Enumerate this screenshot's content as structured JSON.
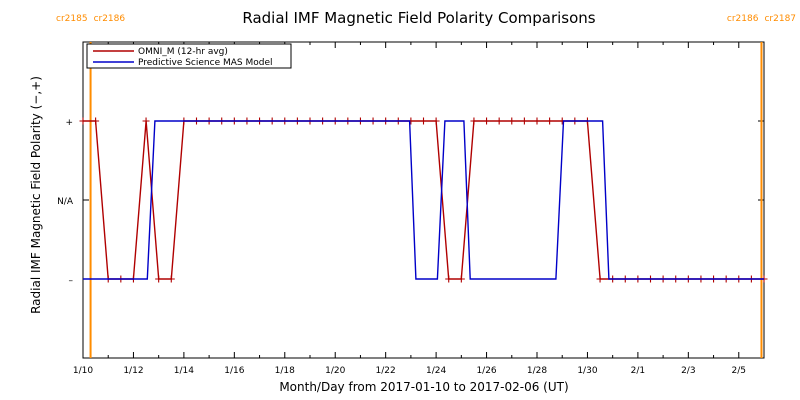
{
  "chart_data": {
    "type": "line",
    "title": "Radial IMF Magnetic Field Polarity Comparisons",
    "xlabel": "Month/Day from 2017-01-10 to 2017-02-06 (UT)",
    "ylabel": "Radial IMF Magnetic Field Polarity (−,+)",
    "xlim": [
      0,
      27
    ],
    "ylim": [
      -2,
      2
    ],
    "x_ticks": [
      {
        "value": 0,
        "label": "1/10"
      },
      {
        "value": 2,
        "label": "1/12"
      },
      {
        "value": 4,
        "label": "1/14"
      },
      {
        "value": 6,
        "label": "1/16"
      },
      {
        "value": 8,
        "label": "1/18"
      },
      {
        "value": 10,
        "label": "1/20"
      },
      {
        "value": 12,
        "label": "1/22"
      },
      {
        "value": 14,
        "label": "1/24"
      },
      {
        "value": 16,
        "label": "1/26"
      },
      {
        "value": 18,
        "label": "1/28"
      },
      {
        "value": 20,
        "label": "1/30"
      },
      {
        "value": 22,
        "label": "2/1"
      },
      {
        "value": 24,
        "label": "2/3"
      },
      {
        "value": 26,
        "label": "2/5"
      }
    ],
    "y_ticks": [
      {
        "value": 1,
        "label": "+"
      },
      {
        "value": 0,
        "label": "N/A"
      },
      {
        "value": -1,
        "label": "–"
      }
    ],
    "carrington_markers": [
      {
        "x": 0.3,
        "label_left": "cr2185",
        "label_right": "cr2186"
      },
      {
        "x": 26.9,
        "label_left": "cr2186",
        "label_right": "cr2187"
      }
    ],
    "legend_position": "top-left",
    "series": [
      {
        "name": "OMNI_M (12-hr avg)",
        "color": "#b00000",
        "markers": "plus",
        "x": [
          0.0,
          0.5,
          1.0,
          1.5,
          2.0,
          2.5,
          3.0,
          3.5,
          4.0,
          4.5,
          5.0,
          5.5,
          6.0,
          6.5,
          7.0,
          7.5,
          8.0,
          8.5,
          9.0,
          9.5,
          10.0,
          10.5,
          11.0,
          11.5,
          12.0,
          12.5,
          13.0,
          13.5,
          14.0,
          14.5,
          15.0,
          15.5,
          16.0,
          16.5,
          17.0,
          17.5,
          18.0,
          18.5,
          19.0,
          19.5,
          20.0,
          20.5,
          21.0,
          21.5,
          22.0,
          22.5,
          23.0,
          23.5,
          24.0,
          24.5,
          25.0,
          25.5,
          26.0,
          26.5,
          27.0
        ],
        "y": [
          1,
          1,
          -1,
          -1,
          -1,
          1,
          -1,
          -1,
          1,
          1,
          1,
          1,
          1,
          1,
          1,
          1,
          1,
          1,
          1,
          1,
          1,
          1,
          1,
          1,
          1,
          1,
          1,
          1,
          1,
          -1,
          -1,
          1,
          1,
          1,
          1,
          1,
          1,
          1,
          1,
          1,
          1,
          -1,
          -1,
          -1,
          -1,
          -1,
          -1,
          -1,
          -1,
          -1,
          -1,
          -1,
          -1,
          -1,
          -1
        ]
      },
      {
        "name": "Predictive Science MAS Model",
        "color": "#0000c8",
        "markers": "none",
        "x": [
          0.0,
          2.55,
          2.85,
          9.9,
          12.95,
          13.2,
          14.05,
          14.35,
          15.1,
          15.35,
          16.45,
          18.75,
          19.05,
          20.6,
          20.85,
          27.0
        ],
        "y": [
          -1,
          -1,
          1,
          1,
          1,
          -1,
          -1,
          1,
          1,
          -1,
          -1,
          -1,
          1,
          1,
          -1,
          -1
        ]
      }
    ]
  }
}
